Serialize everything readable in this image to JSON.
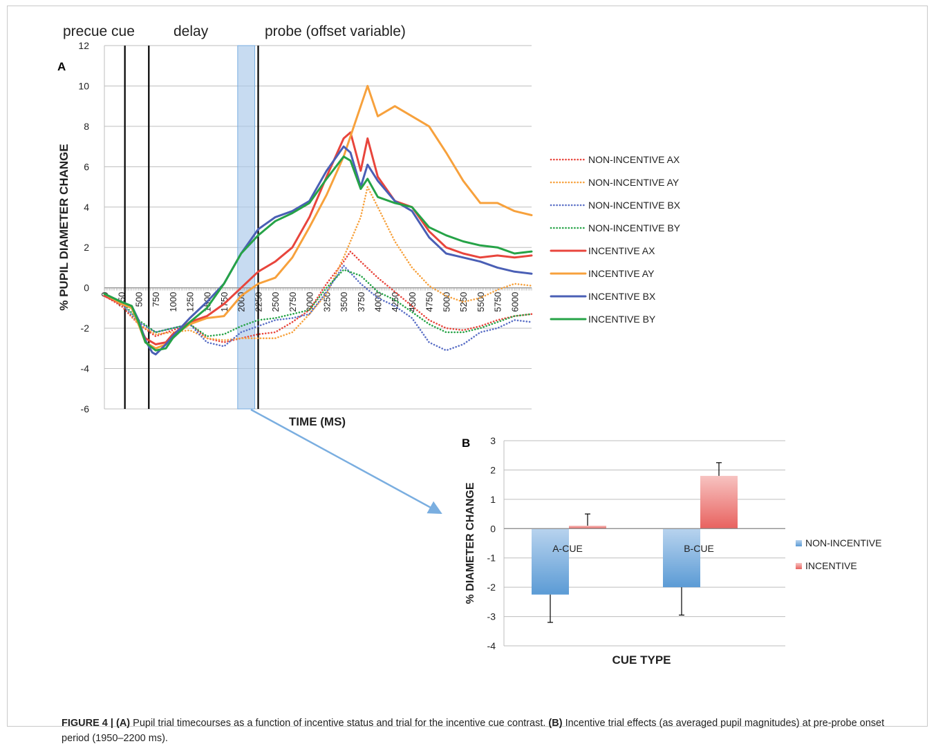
{
  "caption": {
    "label": "FIGURE 4 | (A)",
    "text_a": " Pupil trial timecourses as a function of incentive status and trial for the incentive cue contrast. ",
    "label_b": "(B)",
    "text_b": " Incentive trial effects (as averaged pupil magnitudes) at pre-probe onset period (1950–2200 ms)."
  },
  "chart_data": [
    {
      "type": "line",
      "panel_label": "A",
      "title": "",
      "xlabel": "TIME (MS)",
      "ylabel": "% PUPIL DIAMETER CHANGE",
      "ylim": [
        -6,
        12
      ],
      "yticks": [
        -6,
        -4,
        -2,
        0,
        2,
        4,
        6,
        8,
        10,
        12
      ],
      "xlim": [
        0,
        6250
      ],
      "xticks": [
        0,
        250,
        500,
        750,
        1000,
        1250,
        1500,
        1750,
        2000,
        2250,
        2500,
        2750,
        3000,
        3250,
        3500,
        3750,
        4000,
        4250,
        4500,
        4750,
        5000,
        5250,
        5500,
        5750,
        6000
      ],
      "grid": true,
      "legend_position": "right",
      "annotations": [
        {
          "text": "precue cue"
        },
        {
          "text": "delay"
        },
        {
          "text": "probe (offset variable)"
        }
      ],
      "phase_lines_ms": [
        300,
        650,
        2250
      ],
      "highlight_window_ms": [
        1950,
        2200
      ],
      "series": [
        {
          "name": "NON-INCENTIVE AX",
          "style": "dotted",
          "color": "#e8453c",
          "points": [
            [
              0,
              -0.4
            ],
            [
              250,
              -0.9
            ],
            [
              500,
              -1.8
            ],
            [
              750,
              -2.4
            ],
            [
              1000,
              -2.1
            ],
            [
              1250,
              -1.8
            ],
            [
              1500,
              -2.5
            ],
            [
              1750,
              -2.7
            ],
            [
              2000,
              -2.5
            ],
            [
              2250,
              -2.3
            ],
            [
              2500,
              -2.2
            ],
            [
              2750,
              -1.7
            ],
            [
              3000,
              -1.1
            ],
            [
              3250,
              0.2
            ],
            [
              3500,
              1.3
            ],
            [
              3600,
              1.8
            ],
            [
              3750,
              1.3
            ],
            [
              4000,
              0.5
            ],
            [
              4250,
              -0.2
            ],
            [
              4500,
              -0.9
            ],
            [
              4750,
              -1.6
            ],
            [
              5000,
              -2.0
            ],
            [
              5250,
              -2.1
            ],
            [
              5500,
              -1.9
            ],
            [
              5750,
              -1.6
            ],
            [
              6000,
              -1.4
            ],
            [
              6250,
              -1.3
            ]
          ]
        },
        {
          "name": "NON-INCENTIVE AY",
          "style": "dotted",
          "color": "#f7a13c",
          "points": [
            [
              0,
              -0.4
            ],
            [
              250,
              -0.8
            ],
            [
              500,
              -1.8
            ],
            [
              750,
              -2.3
            ],
            [
              1000,
              -2.2
            ],
            [
              1250,
              -2.1
            ],
            [
              1500,
              -2.5
            ],
            [
              1750,
              -2.6
            ],
            [
              2000,
              -2.5
            ],
            [
              2250,
              -2.5
            ],
            [
              2500,
              -2.5
            ],
            [
              2750,
              -2.2
            ],
            [
              3000,
              -1.3
            ],
            [
              3250,
              -0.3
            ],
            [
              3500,
              1.5
            ],
            [
              3750,
              3.5
            ],
            [
              3850,
              5.0
            ],
            [
              4000,
              4.0
            ],
            [
              4250,
              2.3
            ],
            [
              4500,
              1.0
            ],
            [
              4750,
              0.1
            ],
            [
              5000,
              -0.4
            ],
            [
              5250,
              -0.7
            ],
            [
              5500,
              -0.5
            ],
            [
              5750,
              -0.1
            ],
            [
              6000,
              0.2
            ],
            [
              6250,
              0.1
            ]
          ]
        },
        {
          "name": "NON-INCENTIVE BX",
          "style": "dotted",
          "color": "#5a6fc6",
          "points": [
            [
              0,
              -0.4
            ],
            [
              250,
              -0.8
            ],
            [
              500,
              -1.7
            ],
            [
              750,
              -2.2
            ],
            [
              1000,
              -2.0
            ],
            [
              1250,
              -1.8
            ],
            [
              1500,
              -2.7
            ],
            [
              1750,
              -2.9
            ],
            [
              2000,
              -2.2
            ],
            [
              2250,
              -1.9
            ],
            [
              2500,
              -1.6
            ],
            [
              2750,
              -1.5
            ],
            [
              3000,
              -1.3
            ],
            [
              3250,
              -0.2
            ],
            [
              3500,
              1.1
            ],
            [
              3750,
              0.2
            ],
            [
              4000,
              -0.5
            ],
            [
              4250,
              -0.9
            ],
            [
              4500,
              -1.5
            ],
            [
              4750,
              -2.7
            ],
            [
              5000,
              -3.1
            ],
            [
              5250,
              -2.8
            ],
            [
              5500,
              -2.2
            ],
            [
              5750,
              -2.0
            ],
            [
              6000,
              -1.6
            ],
            [
              6250,
              -1.7
            ]
          ]
        },
        {
          "name": "NON-INCENTIVE BY",
          "style": "dotted",
          "color": "#26a347",
          "points": [
            [
              0,
              -0.3
            ],
            [
              250,
              -0.7
            ],
            [
              500,
              -1.6
            ],
            [
              750,
              -2.2
            ],
            [
              1000,
              -2.0
            ],
            [
              1250,
              -1.8
            ],
            [
              1500,
              -2.4
            ],
            [
              1750,
              -2.3
            ],
            [
              2000,
              -1.9
            ],
            [
              2250,
              -1.6
            ],
            [
              2500,
              -1.5
            ],
            [
              2750,
              -1.3
            ],
            [
              3000,
              -1.1
            ],
            [
              3250,
              0.0
            ],
            [
              3500,
              0.9
            ],
            [
              3750,
              0.6
            ],
            [
              4000,
              -0.2
            ],
            [
              4250,
              -0.6
            ],
            [
              4500,
              -1.2
            ],
            [
              4750,
              -1.8
            ],
            [
              5000,
              -2.2
            ],
            [
              5250,
              -2.2
            ],
            [
              5500,
              -2.0
            ],
            [
              5750,
              -1.7
            ],
            [
              6000,
              -1.4
            ],
            [
              6250,
              -1.3
            ]
          ]
        },
        {
          "name": "INCENTIVE AX",
          "style": "solid",
          "color": "#e8453c",
          "points": [
            [
              0,
              -0.4
            ],
            [
              250,
              -0.8
            ],
            [
              400,
              -1.0
            ],
            [
              500,
              -1.8
            ],
            [
              600,
              -2.5
            ],
            [
              750,
              -2.8
            ],
            [
              900,
              -2.7
            ],
            [
              1000,
              -2.3
            ],
            [
              1250,
              -1.7
            ],
            [
              1500,
              -1.4
            ],
            [
              1750,
              -0.8
            ],
            [
              2000,
              0.0
            ],
            [
              2250,
              0.8
            ],
            [
              2500,
              1.3
            ],
            [
              2750,
              2.0
            ],
            [
              3000,
              3.5
            ],
            [
              3250,
              5.5
            ],
            [
              3500,
              7.4
            ],
            [
              3600,
              7.7
            ],
            [
              3750,
              5.8
            ],
            [
              3850,
              7.4
            ],
            [
              4000,
              5.5
            ],
            [
              4250,
              4.3
            ],
            [
              4500,
              4.0
            ],
            [
              4750,
              2.8
            ],
            [
              5000,
              2.0
            ],
            [
              5250,
              1.7
            ],
            [
              5500,
              1.5
            ],
            [
              5750,
              1.6
            ],
            [
              6000,
              1.5
            ],
            [
              6250,
              1.6
            ]
          ]
        },
        {
          "name": "INCENTIVE AY",
          "style": "solid",
          "color": "#f7a13c",
          "points": [
            [
              0,
              -0.3
            ],
            [
              250,
              -0.8
            ],
            [
              400,
              -1.0
            ],
            [
              500,
              -1.8
            ],
            [
              600,
              -2.7
            ],
            [
              750,
              -3.0
            ],
            [
              900,
              -2.8
            ],
            [
              1000,
              -2.4
            ],
            [
              1250,
              -1.8
            ],
            [
              1500,
              -1.5
            ],
            [
              1750,
              -1.4
            ],
            [
              2000,
              -0.4
            ],
            [
              2250,
              0.2
            ],
            [
              2500,
              0.5
            ],
            [
              2750,
              1.5
            ],
            [
              3000,
              3.0
            ],
            [
              3250,
              4.6
            ],
            [
              3500,
              6.5
            ],
            [
              3750,
              9.0
            ],
            [
              3850,
              10.0
            ],
            [
              4000,
              8.5
            ],
            [
              4250,
              9.0
            ],
            [
              4500,
              8.5
            ],
            [
              4750,
              8.0
            ],
            [
              5000,
              6.7
            ],
            [
              5250,
              5.3
            ],
            [
              5500,
              4.2
            ],
            [
              5750,
              4.2
            ],
            [
              6000,
              3.8
            ],
            [
              6250,
              3.6
            ]
          ]
        },
        {
          "name": "INCENTIVE BX",
          "style": "solid",
          "color": "#4a5fb5",
          "points": [
            [
              0,
              -0.3
            ],
            [
              250,
              -0.7
            ],
            [
              400,
              -0.9
            ],
            [
              500,
              -1.6
            ],
            [
              600,
              -2.6
            ],
            [
              700,
              -3.2
            ],
            [
              750,
              -3.3
            ],
            [
              900,
              -2.8
            ],
            [
              1000,
              -2.4
            ],
            [
              1250,
              -1.5
            ],
            [
              1500,
              -0.7
            ],
            [
              1750,
              0.2
            ],
            [
              2000,
              1.7
            ],
            [
              2250,
              2.9
            ],
            [
              2500,
              3.5
            ],
            [
              2750,
              3.8
            ],
            [
              3000,
              4.3
            ],
            [
              3250,
              5.8
            ],
            [
              3500,
              7.0
            ],
            [
              3600,
              6.7
            ],
            [
              3750,
              5.0
            ],
            [
              3850,
              6.1
            ],
            [
              4000,
              5.3
            ],
            [
              4250,
              4.3
            ],
            [
              4500,
              3.8
            ],
            [
              4750,
              2.5
            ],
            [
              5000,
              1.7
            ],
            [
              5250,
              1.5
            ],
            [
              5500,
              1.3
            ],
            [
              5750,
              1.0
            ],
            [
              6000,
              0.8
            ],
            [
              6250,
              0.7
            ]
          ]
        },
        {
          "name": "INCENTIVE BY",
          "style": "solid",
          "color": "#26a347",
          "points": [
            [
              0,
              -0.3
            ],
            [
              250,
              -0.7
            ],
            [
              400,
              -0.9
            ],
            [
              500,
              -1.7
            ],
            [
              600,
              -2.7
            ],
            [
              750,
              -3.1
            ],
            [
              900,
              -3.0
            ],
            [
              1000,
              -2.5
            ],
            [
              1250,
              -1.7
            ],
            [
              1500,
              -1.0
            ],
            [
              1750,
              0.2
            ],
            [
              2000,
              1.7
            ],
            [
              2250,
              2.6
            ],
            [
              2500,
              3.3
            ],
            [
              2750,
              3.7
            ],
            [
              3000,
              4.2
            ],
            [
              3250,
              5.4
            ],
            [
              3500,
              6.5
            ],
            [
              3600,
              6.3
            ],
            [
              3750,
              4.9
            ],
            [
              3850,
              5.4
            ],
            [
              4000,
              4.5
            ],
            [
              4250,
              4.2
            ],
            [
              4500,
              4.0
            ],
            [
              4750,
              3.0
            ],
            [
              5000,
              2.6
            ],
            [
              5250,
              2.3
            ],
            [
              5500,
              2.1
            ],
            [
              5750,
              2.0
            ],
            [
              6000,
              1.7
            ],
            [
              6250,
              1.8
            ]
          ]
        }
      ]
    },
    {
      "type": "bar",
      "panel_label": "B",
      "title": "",
      "xlabel": "CUE TYPE",
      "ylabel": "% DIAMETER CHANGE",
      "ylim": [
        -4,
        3
      ],
      "yticks": [
        -4,
        -3,
        -2,
        -1,
        0,
        1,
        2,
        3
      ],
      "grid": true,
      "legend_position": "right",
      "categories": [
        "A-CUE",
        "B-CUE"
      ],
      "series": [
        {
          "name": "NON-INCENTIVE",
          "color": "#5b9bd5",
          "values": [
            -2.25,
            -2.0
          ],
          "error": [
            0.95,
            0.95
          ]
        },
        {
          "name": "INCENTIVE",
          "color": "#e8625f",
          "values": [
            0.1,
            1.8
          ],
          "error": [
            0.4,
            0.45
          ]
        }
      ]
    }
  ]
}
